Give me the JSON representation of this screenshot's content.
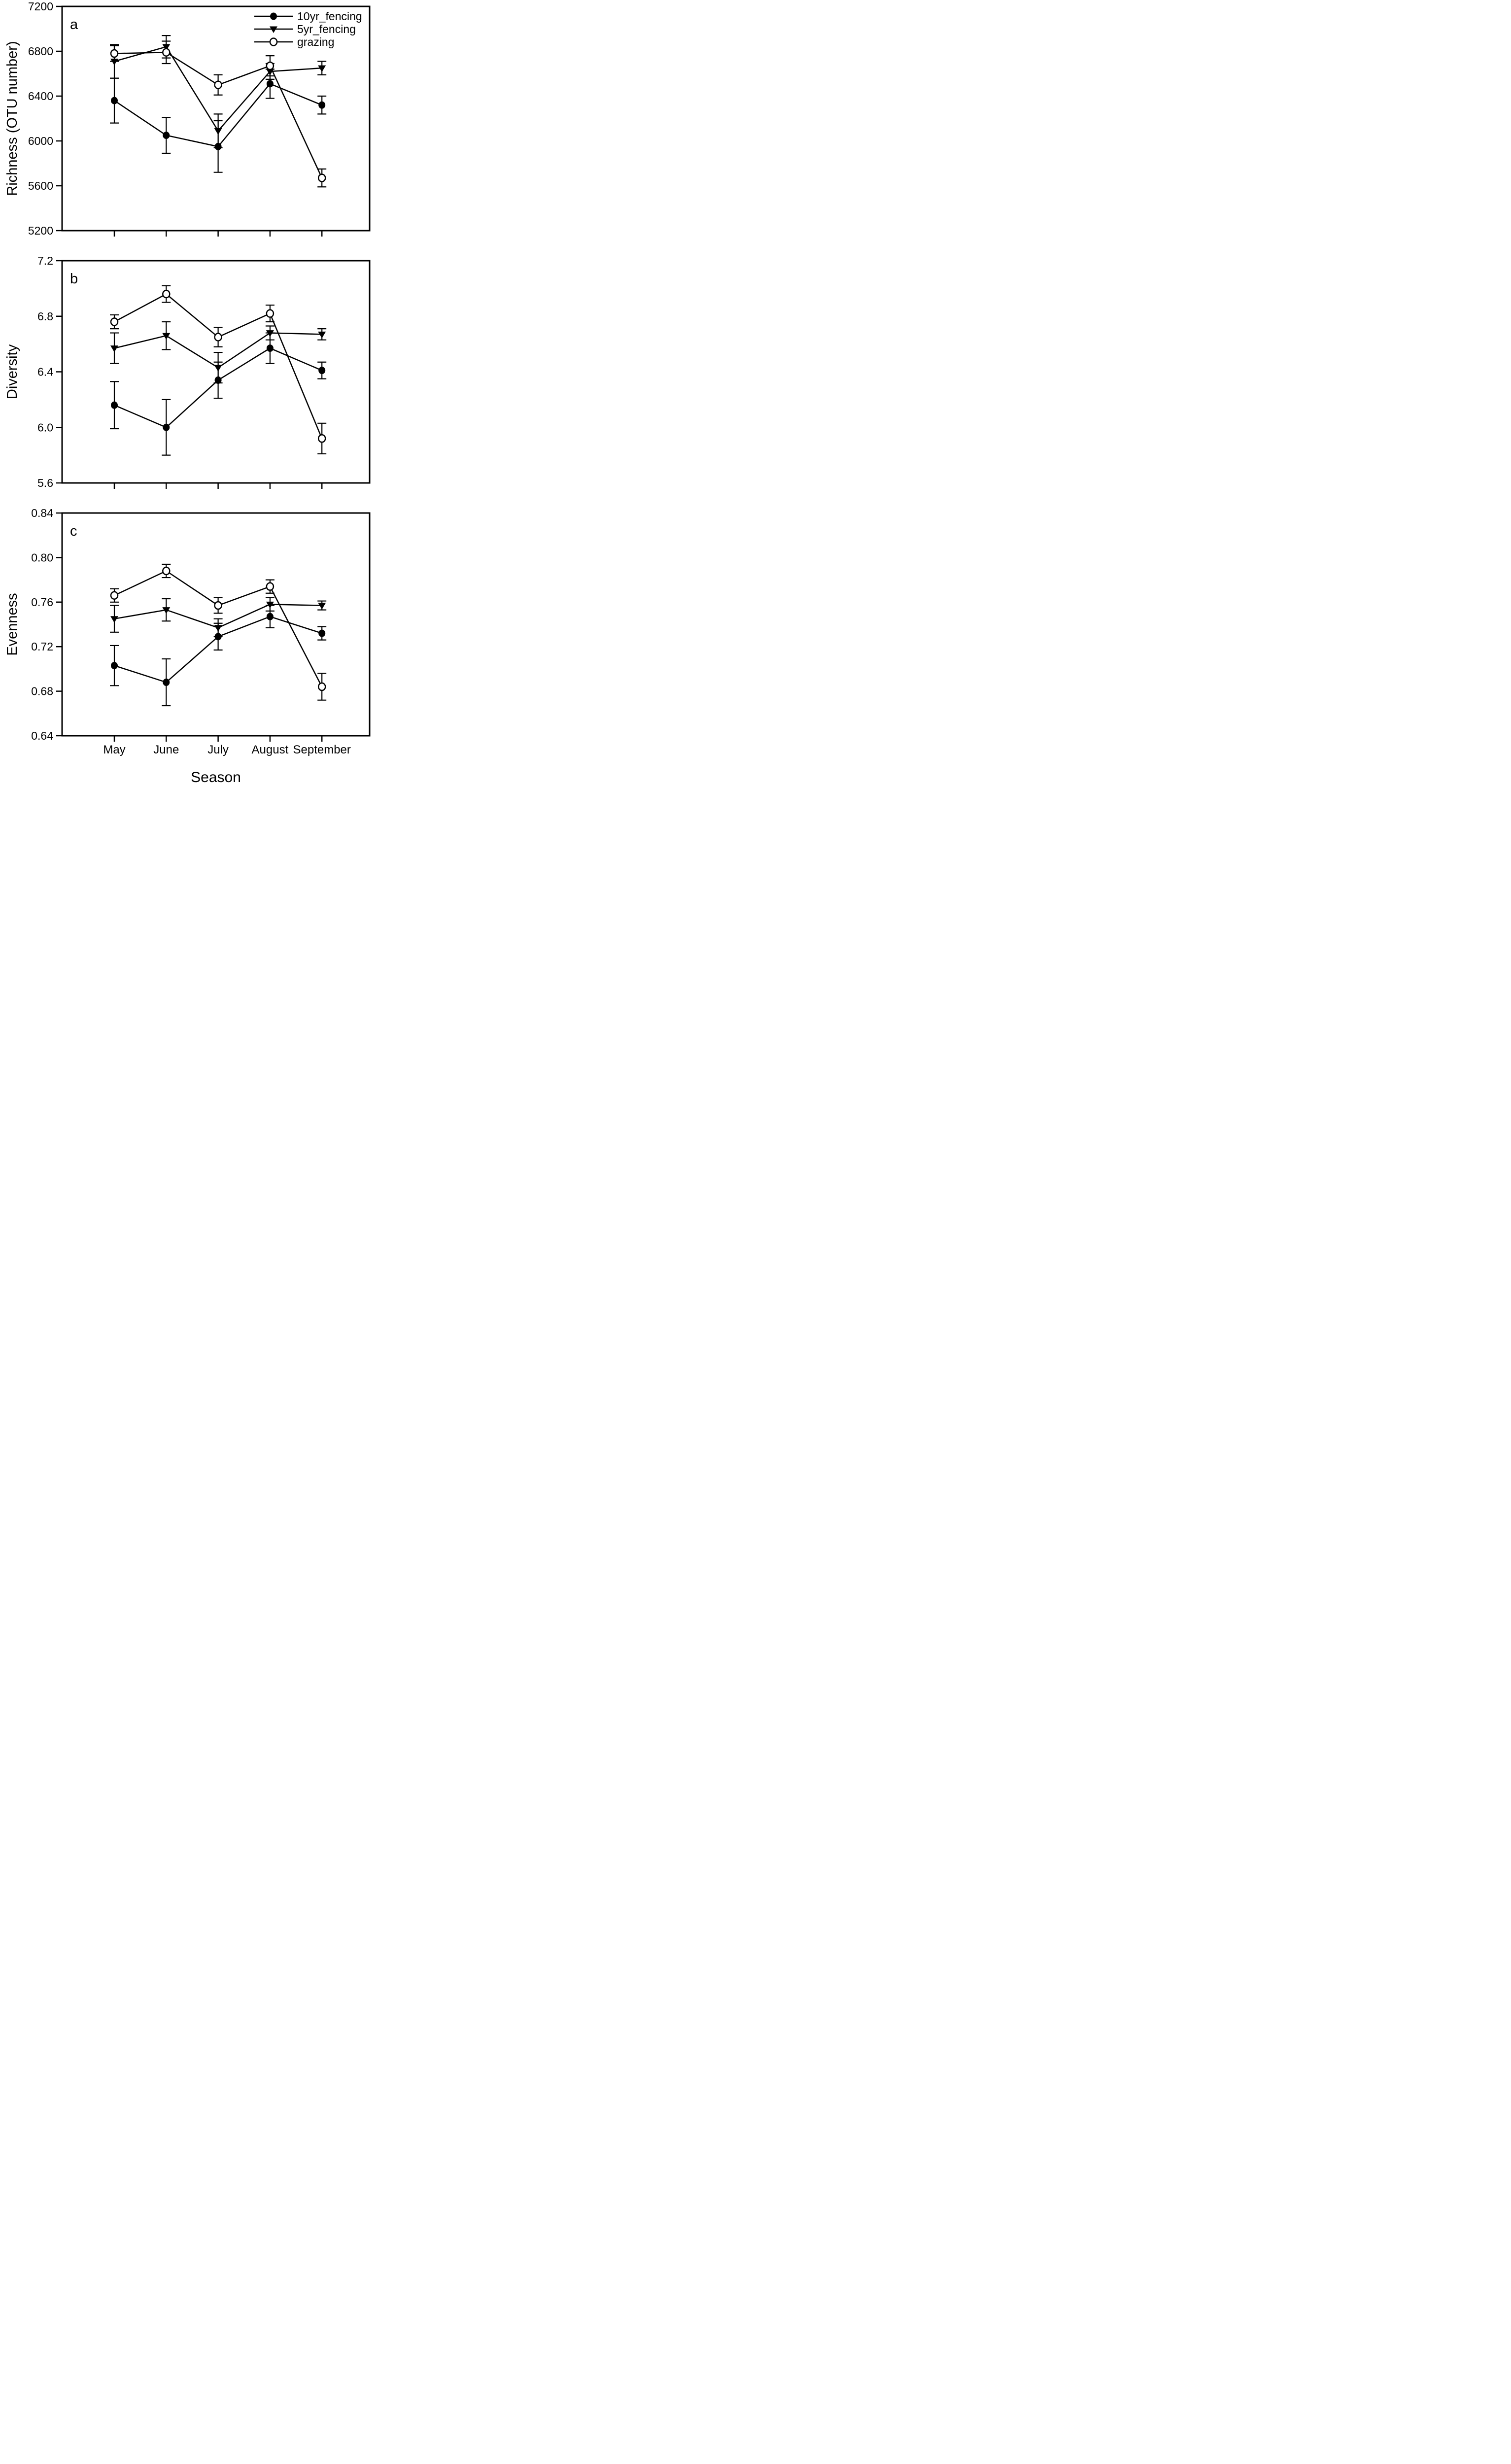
{
  "figure": {
    "xlabel": "Season",
    "categories": [
      "May",
      "June",
      "July",
      "August",
      "September"
    ],
    "panel_letters": [
      "a",
      "b",
      "c"
    ],
    "colors": {
      "foreground": "#000000",
      "background": "#ffffff"
    },
    "legend": [
      {
        "label": "10yr_fencing",
        "marker": "filled-circle"
      },
      {
        "label": "5yr_fencing",
        "marker": "filled-triangle-down"
      },
      {
        "label": "grazing",
        "marker": "open-circle"
      }
    ]
  },
  "chart_data": [
    {
      "type": "line",
      "panel_label": "a",
      "ylabel": "Richness (OTU number)",
      "ylim": [
        5200,
        7200
      ],
      "yticks": [
        5200,
        5600,
        6000,
        6400,
        6800,
        7200
      ],
      "ytick_labels": [
        "5200",
        "5600",
        "6000",
        "6400",
        "6800",
        "7200"
      ],
      "categories": [
        "May",
        "June",
        "July",
        "August",
        "September"
      ],
      "grid": false,
      "legend_position": "top-right",
      "series": [
        {
          "name": "10yr_fencing",
          "marker": "filled-circle",
          "values": [
            6360,
            6050,
            5950,
            6510,
            6320
          ],
          "errors": [
            200,
            160,
            230,
            130,
            80
          ]
        },
        {
          "name": "5yr_fencing",
          "marker": "filled-triangle-down",
          "values": [
            6710,
            6840,
            6090,
            6620,
            6650
          ],
          "errors": [
            150,
            100,
            150,
            70,
            60
          ]
        },
        {
          "name": "grazing",
          "marker": "open-circle",
          "values": [
            6780,
            6790,
            6500,
            6670,
            5670
          ],
          "errors": [
            70,
            100,
            90,
            90,
            80
          ]
        }
      ]
    },
    {
      "type": "line",
      "panel_label": "b",
      "ylabel": "Diversity",
      "ylim": [
        5.6,
        7.2
      ],
      "yticks": [
        5.6,
        6.0,
        6.4,
        6.8,
        7.2
      ],
      "ytick_labels": [
        "5.6",
        "6.0",
        "6.4",
        "6.8",
        "7.2"
      ],
      "categories": [
        "May",
        "June",
        "July",
        "August",
        "September"
      ],
      "grid": false,
      "legend_position": "none",
      "series": [
        {
          "name": "10yr_fencing",
          "marker": "filled-circle",
          "values": [
            6.16,
            6.0,
            6.34,
            6.57,
            6.41
          ],
          "errors": [
            0.17,
            0.2,
            0.13,
            0.11,
            0.06
          ]
        },
        {
          "name": "5yr_fencing",
          "marker": "filled-triangle-down",
          "values": [
            6.57,
            6.66,
            6.43,
            6.68,
            6.67
          ],
          "errors": [
            0.11,
            0.1,
            0.11,
            0.05,
            0.04
          ]
        },
        {
          "name": "grazing",
          "marker": "open-circle",
          "values": [
            6.76,
            6.96,
            6.65,
            6.82,
            5.92
          ],
          "errors": [
            0.05,
            0.06,
            0.07,
            0.06,
            0.11
          ]
        }
      ]
    },
    {
      "type": "line",
      "panel_label": "c",
      "ylabel": "Evenness",
      "ylim": [
        0.64,
        0.84
      ],
      "yticks": [
        0.64,
        0.68,
        0.72,
        0.76,
        0.8,
        0.84
      ],
      "ytick_labels": [
        "0.64",
        "0.68",
        "0.72",
        "0.76",
        "0.80",
        "0.84"
      ],
      "categories": [
        "May",
        "June",
        "July",
        "August",
        "September"
      ],
      "grid": false,
      "legend_position": "none",
      "series": [
        {
          "name": "10yr_fencing",
          "marker": "filled-circle",
          "values": [
            0.703,
            0.688,
            0.729,
            0.747,
            0.732
          ],
          "errors": [
            0.018,
            0.021,
            0.012,
            0.01,
            0.006
          ]
        },
        {
          "name": "5yr_fencing",
          "marker": "filled-triangle-down",
          "values": [
            0.745,
            0.753,
            0.737,
            0.758,
            0.757
          ],
          "errors": [
            0.012,
            0.01,
            0.008,
            0.006,
            0.004
          ]
        },
        {
          "name": "grazing",
          "marker": "open-circle",
          "values": [
            0.766,
            0.788,
            0.757,
            0.774,
            0.684
          ],
          "errors": [
            0.006,
            0.006,
            0.007,
            0.006,
            0.012
          ]
        }
      ]
    }
  ]
}
